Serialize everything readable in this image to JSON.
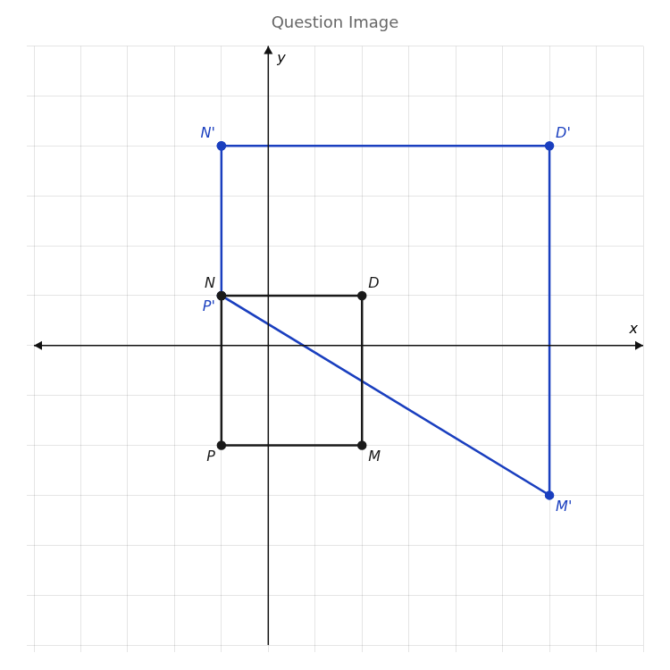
{
  "chart_data": {
    "type": "scatter",
    "title": "Question Image",
    "x_label": "x",
    "y_label": "y",
    "xlim": [
      -5,
      8
    ],
    "ylim": [
      -6,
      6
    ],
    "xticks": [
      -5,
      -4,
      -3,
      -2,
      -1,
      0,
      1,
      2,
      3,
      4,
      5,
      6,
      7,
      8
    ],
    "yticks": [
      -6,
      -5,
      -4,
      -3,
      -2,
      -1,
      0,
      1,
      2,
      3,
      4,
      5,
      6
    ],
    "tick_labels": false,
    "grid": true,
    "series": [
      {
        "color": "#1a1a1a",
        "marker": "circle",
        "line_style": "solid",
        "x": [
          -1,
          2,
          2,
          -1,
          -1
        ],
        "y": [
          1,
          1,
          -2,
          -2,
          1
        ],
        "point_labels": [
          "N",
          "D",
          "M",
          "P",
          null
        ]
      },
      {
        "color": "#1a3fbf",
        "marker": "circle",
        "line_style": "solid",
        "x": [
          -1,
          6,
          6,
          -1,
          -1
        ],
        "y": [
          4,
          4,
          -3,
          1,
          4
        ],
        "point_labels": [
          "N'",
          "D'",
          "M'",
          "P'",
          null
        ]
      }
    ]
  }
}
